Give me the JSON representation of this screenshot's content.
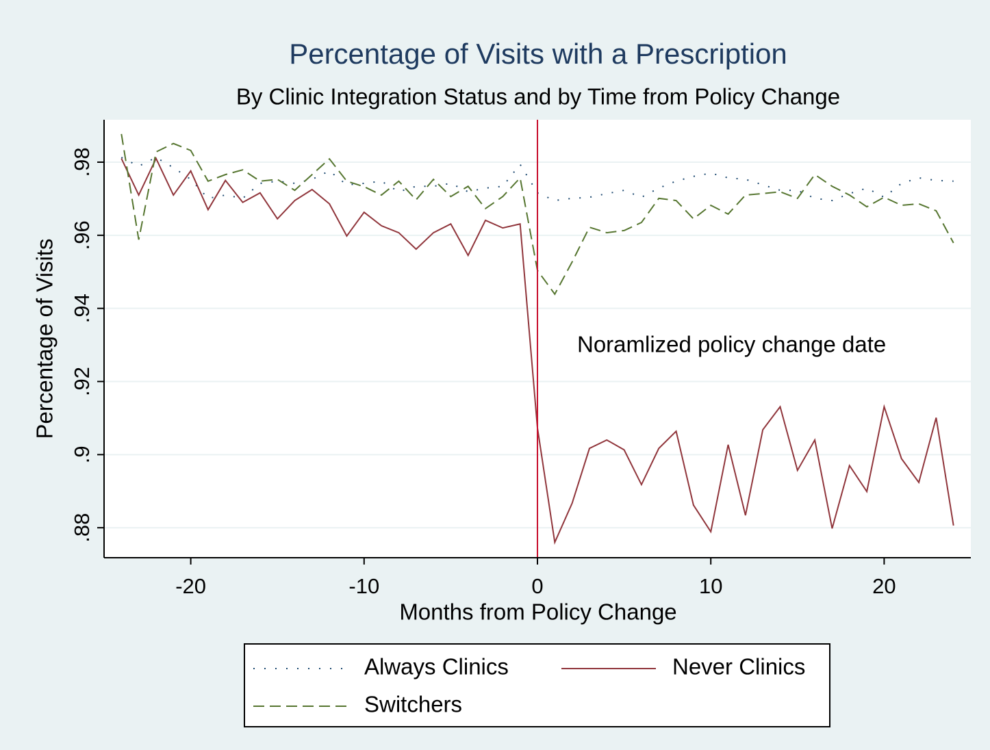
{
  "chart_data": {
    "type": "line",
    "title": "Percentage of Visits with a Prescription",
    "subtitle": "By Clinic Integration Status and by Time from Policy Change",
    "x_label": "Months from Policy Change",
    "y_label": "Percentage of Visits",
    "annotation": "Noramlized policy change date",
    "xline": 0,
    "xline_color": "#c8102e",
    "x": [
      -24,
      -23,
      -22,
      -21,
      -20,
      -19,
      -18,
      -17,
      -16,
      -15,
      -14,
      -13,
      -12,
      -11,
      -10,
      -9,
      -8,
      -7,
      -6,
      -5,
      -4,
      -3,
      -2,
      -1,
      0,
      1,
      2,
      3,
      4,
      5,
      6,
      7,
      8,
      9,
      10,
      11,
      12,
      13,
      14,
      15,
      16,
      17,
      18,
      19,
      20,
      21,
      22,
      23,
      24
    ],
    "series": [
      {
        "name": "Always Clinics",
        "color": "#1a476f",
        "dash": "dot",
        "values": [
          0.9813,
          0.9789,
          0.9813,
          0.9785,
          0.9753,
          0.9701,
          0.971,
          0.9701,
          0.9742,
          0.9748,
          0.9742,
          0.9753,
          0.9776,
          0.9738,
          0.9742,
          0.9748,
          0.9719,
          0.9734,
          0.9734,
          0.9742,
          0.9719,
          0.9729,
          0.9734,
          0.9794,
          0.9716,
          0.9695,
          0.9701,
          0.9704,
          0.9714,
          0.9723,
          0.9704,
          0.9729,
          0.9748,
          0.9761,
          0.977,
          0.9757,
          0.9753,
          0.9738,
          0.9723,
          0.9723,
          0.9701,
          0.9695,
          0.9714,
          0.9729,
          0.9704,
          0.9742,
          0.9757,
          0.975,
          0.9748
        ]
      },
      {
        "name": "Never Clinics",
        "color": "#90353b",
        "dash": "solid",
        "values": [
          0.981,
          0.971,
          0.981,
          0.971,
          0.9776,
          0.967,
          0.975,
          0.969,
          0.9716,
          0.9645,
          0.9695,
          0.9725,
          0.9686,
          0.9598,
          0.9663,
          0.9626,
          0.9607,
          0.9562,
          0.9607,
          0.9631,
          0.9545,
          0.9641,
          0.962,
          0.9631,
          0.9073,
          0.876,
          0.8867,
          0.9017,
          0.904,
          0.9013,
          0.8918,
          0.9017,
          0.9064,
          0.8862,
          0.8789,
          0.9027,
          0.8834,
          0.9068,
          0.9131,
          0.8957,
          0.904,
          0.8798,
          0.897,
          0.8899,
          0.9131,
          0.8989,
          0.8924,
          0.9101,
          0.8806
        ]
      },
      {
        "name": "Switchers",
        "color": "#55752f",
        "dash": "dash",
        "values": [
          0.9877,
          0.9588,
          0.9828,
          0.9851,
          0.9832,
          0.9748,
          0.9766,
          0.9779,
          0.9748,
          0.9753,
          0.9723,
          0.9766,
          0.9809,
          0.9748,
          0.9733,
          0.971,
          0.9748,
          0.9697,
          0.9753,
          0.9706,
          0.9734,
          0.9673,
          0.9706,
          0.9757,
          0.9504,
          0.9439,
          0.9527,
          0.9622,
          0.9607,
          0.9613,
          0.9635,
          0.9701,
          0.9695,
          0.9645,
          0.9682,
          0.9658,
          0.971,
          0.9714,
          0.9719,
          0.9701,
          0.9766,
          0.9734,
          0.971,
          0.9678,
          0.9704,
          0.9682,
          0.9686,
          0.9667,
          0.9579
        ]
      }
    ],
    "xlim": [
      -25,
      25
    ],
    "ylim": [
      0.8718,
      0.9916
    ],
    "xticks": [
      -20,
      -10,
      0,
      10,
      20
    ],
    "yticks": [
      {
        "value": 0.88,
        "label": ".88"
      },
      {
        "value": 0.9,
        "label": ".9"
      },
      {
        "value": 0.92,
        "label": ".92"
      },
      {
        "value": 0.94,
        "label": ".94"
      },
      {
        "value": 0.96,
        "label": ".96"
      },
      {
        "value": 0.98,
        "label": ".98"
      }
    ],
    "grid": true
  }
}
